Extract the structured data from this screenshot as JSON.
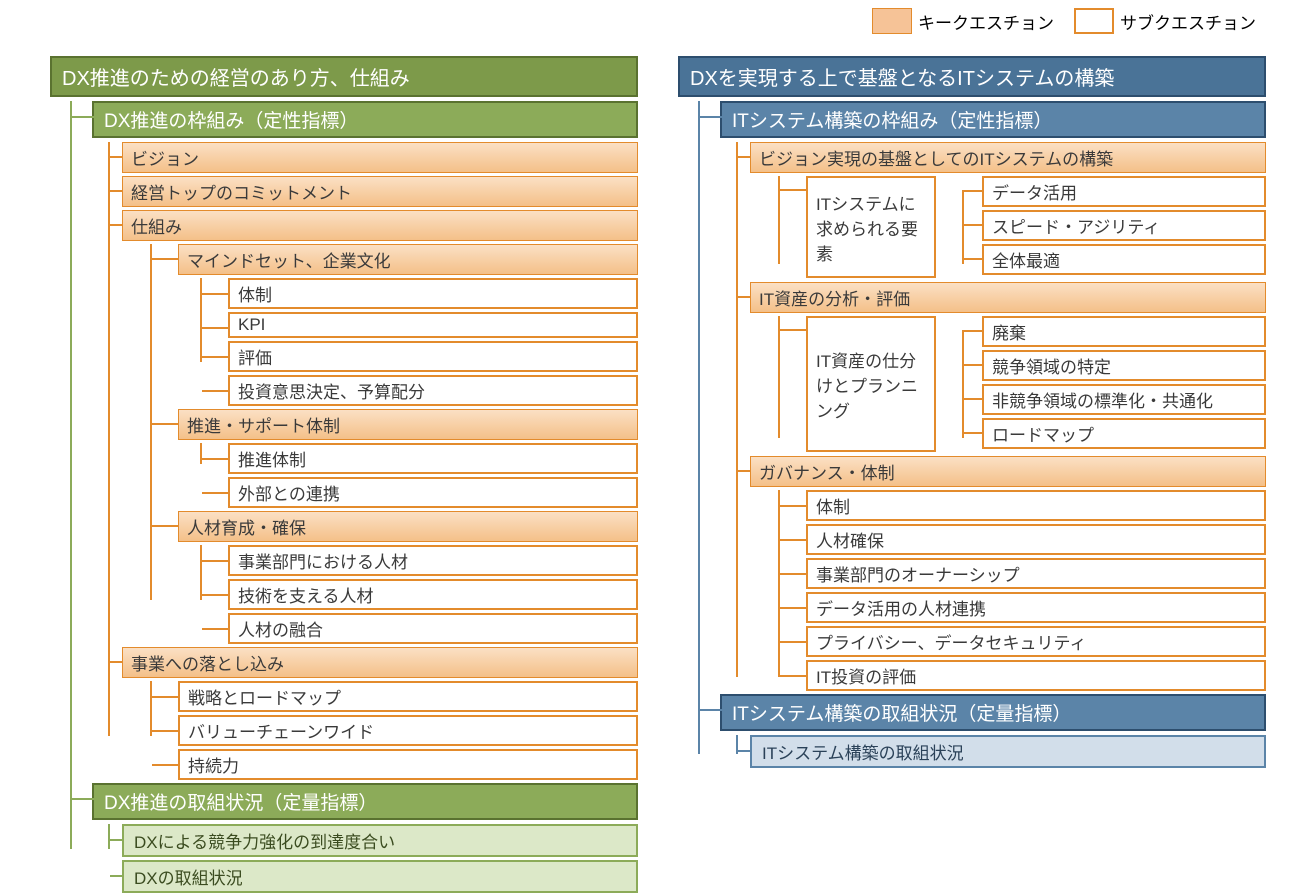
{
  "legend": {
    "key_question": "キークエスチョン",
    "sub_question": "サブクエスチョン"
  },
  "colors": {
    "green_header": "#7d9a4a",
    "green_border": "#5a7230",
    "green_light": "#dce8c8",
    "blue_header": "#4a7397",
    "blue_border": "#2d4e6e",
    "blue_light": "#d2deea",
    "key_fill_top": "#fbe0c4",
    "key_fill_bot": "#f4c089",
    "orange_border": "#e38b2c",
    "white": "#ffffff"
  },
  "left": {
    "title": "DX推進のための経営のあり方、仕組み",
    "section1": "DX推進の枠組み（定性指標）",
    "vision": "ビジョン",
    "commitment": "経営トップのコミットメント",
    "mechanism": "仕組み",
    "mindset": "マインドセット、企業文化",
    "mindset_subs": {
      "a": "体制",
      "b": "KPI",
      "c": "評価",
      "d": "投資意思決定、予算配分"
    },
    "support": "推進・サポート体制",
    "support_subs": {
      "a": "推進体制",
      "b": "外部との連携"
    },
    "hr": "人材育成・確保",
    "hr_subs": {
      "a": "事業部門における人材",
      "b": "技術を支える人材",
      "c": "人材の融合"
    },
    "business": "事業への落とし込み",
    "business_subs": {
      "a": "戦略とロードマップ",
      "b": "バリューチェーンワイド",
      "c": "持続力"
    },
    "section2": "DX推進の取組状況（定量指標）",
    "quant": {
      "a": "DXによる競争力強化の到達度合い",
      "b": "DXの取組状況"
    }
  },
  "right": {
    "title": "DXを実現する上で基盤となるITシステムの構築",
    "section1": "ITシステム構築の枠組み（定性指標）",
    "vision_it": "ビジョン実現の基盤としてのITシステムの構築",
    "it_req_label": "ITシステムに求められる要素",
    "it_req_subs": {
      "a": "データ活用",
      "b": "スピード・アジリティ",
      "c": "全体最適"
    },
    "asset_analysis": "IT資産の分析・評価",
    "asset_plan_label": "IT資産の仕分けとプランニング",
    "asset_plan_subs": {
      "a": "廃棄",
      "b": "競争領域の特定",
      "c": "非競争領域の標準化・共通化",
      "d": "ロードマップ"
    },
    "governance": "ガバナンス・体制",
    "gov_subs": {
      "a": "体制",
      "b": "人材確保",
      "c": "事業部門のオーナーシップ",
      "d": "データ活用の人材連携",
      "e": "プライバシー、データセキュリティ",
      "f": "IT投資の評価"
    },
    "section2": "ITシステム構築の取組状況（定量指標）",
    "quant": {
      "a": "ITシステム構築の取組状況"
    }
  }
}
